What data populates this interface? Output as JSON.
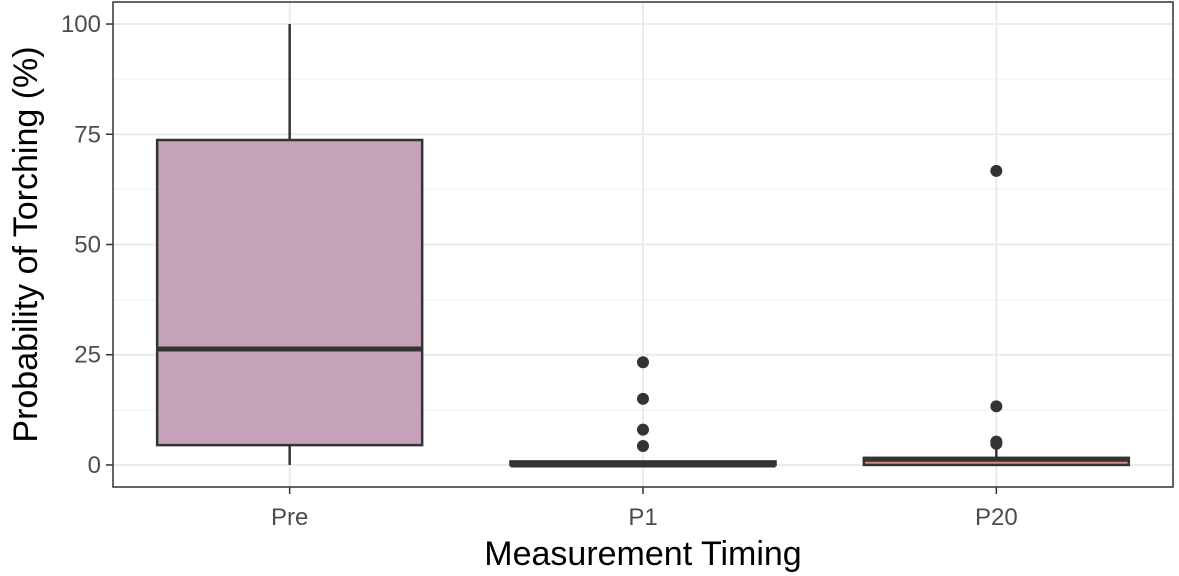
{
  "chart_data": {
    "type": "box",
    "xlabel": "Measurement Timing",
    "ylabel": "Probability of Torching (%)",
    "ylim": [
      -5,
      105
    ],
    "y_ticks": [
      0,
      25,
      50,
      75,
      100
    ],
    "categories": [
      "Pre",
      "P1",
      "P20"
    ],
    "grid": "on",
    "boxes": [
      {
        "category": "Pre",
        "whisker_low": 0,
        "q1": 4.5,
        "median": 26.3,
        "q3": 73.7,
        "whisker_high": 100,
        "outliers": [],
        "fill": "#c6a2b8"
      },
      {
        "category": "P1",
        "whisker_low": 0,
        "q1": 0,
        "median": 0,
        "q3": 0.8,
        "whisker_high": 0.8,
        "outliers": [
          23.3,
          15.0,
          8.0,
          4.3
        ],
        "fill": "#7a4f48"
      },
      {
        "category": "P20",
        "whisker_low": 0,
        "q1": 0,
        "median": 1.3,
        "q3": 1.6,
        "whisker_high": 3.8,
        "outliers": [
          66.7,
          13.3,
          5.3,
          4.8
        ],
        "fill": "#d48f82"
      }
    ],
    "colors": {
      "line": "#333333",
      "outlier": "#333333",
      "grid_major": "#ebebeb",
      "grid_minor": "#f3f3f3",
      "panel_border": "#333333"
    }
  }
}
